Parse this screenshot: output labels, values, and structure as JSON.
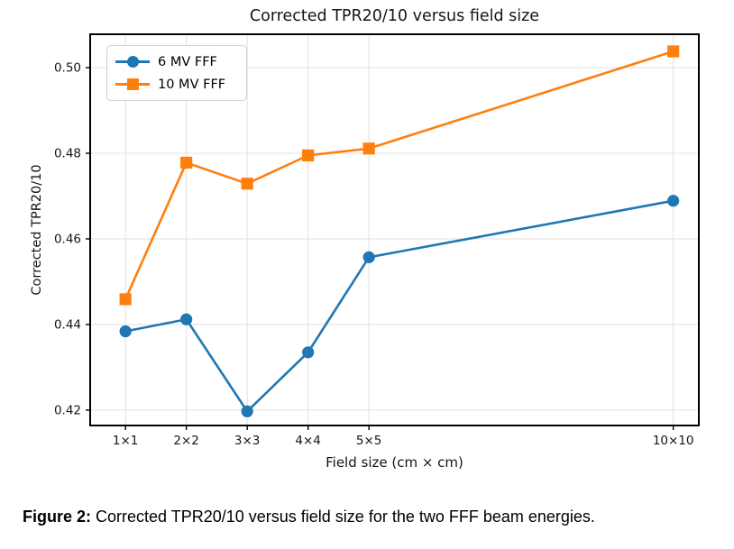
{
  "figure": {
    "caption_prefix": "Figure 2:",
    "caption_text": " Corrected TPR20/10 versus field size for the two FFF beam energies."
  },
  "chart_data": {
    "type": "line",
    "title": "Corrected TPR20/10 versus field size",
    "xlabel": "Field size (cm × cm)",
    "ylabel": "Corrected TPR20/10",
    "x": [
      1,
      2,
      3,
      4,
      5,
      10
    ],
    "xtick_labels": [
      "1×1",
      "2×2",
      "3×3",
      "4×4",
      "5×5",
      "10×10"
    ],
    "yticks": [
      0.42,
      0.44,
      0.46,
      0.48,
      0.5
    ],
    "xlim": [
      0.42,
      10.42
    ],
    "ylim": [
      0.4164,
      0.5078
    ],
    "grid": true,
    "legend_position": "upper left",
    "series": [
      {
        "name": "6 MV FFF",
        "marker": "circle",
        "color": "#1f77b4",
        "values": [
          0.4384,
          0.4412,
          0.4197,
          0.4335,
          0.4557,
          0.4689
        ]
      },
      {
        "name": "10 MV FFF",
        "marker": "square",
        "color": "#ff7f0e",
        "values": [
          0.4459,
          0.4778,
          0.4729,
          0.4795,
          0.4811,
          0.5038
        ]
      }
    ],
    "style": {
      "grid_color": "#e3e3e3",
      "spine_color": "#000000",
      "tick_label_color": "#151515"
    }
  }
}
